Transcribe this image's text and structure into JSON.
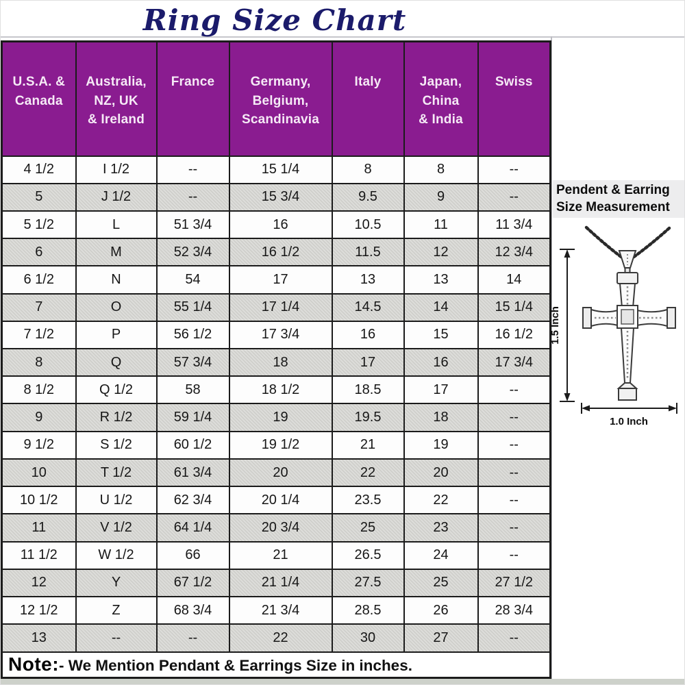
{
  "title": "Ring Size Chart",
  "chart_data": {
    "type": "table",
    "title": "Ring Size Chart",
    "columns": [
      "U.S.A. &\nCanada",
      "Australia,\nNZ, UK\n& Ireland",
      "France",
      "Germany,\nBelgium,\nScandinavia",
      "Italy",
      "Japan,\nChina\n& India",
      "Swiss"
    ],
    "rows": [
      [
        "4 1/2",
        "I 1/2",
        "--",
        "15 1/4",
        "8",
        "8",
        "--"
      ],
      [
        "5",
        "J 1/2",
        "--",
        "15 3/4",
        "9.5",
        "9",
        "--"
      ],
      [
        "5 1/2",
        "L",
        "51 3/4",
        "16",
        "10.5",
        "11",
        "11 3/4"
      ],
      [
        "6",
        "M",
        "52 3/4",
        "16 1/2",
        "11.5",
        "12",
        "12 3/4"
      ],
      [
        "6 1/2",
        "N",
        "54",
        "17",
        "13",
        "13",
        "14"
      ],
      [
        "7",
        "O",
        "55 1/4",
        "17 1/4",
        "14.5",
        "14",
        "15 1/4"
      ],
      [
        "7 1/2",
        "P",
        "56 1/2",
        "17 3/4",
        "16",
        "15",
        "16 1/2"
      ],
      [
        "8",
        "Q",
        "57 3/4",
        "18",
        "17",
        "16",
        "17 3/4"
      ],
      [
        "8 1/2",
        "Q 1/2",
        "58",
        "18 1/2",
        "18.5",
        "17",
        "--"
      ],
      [
        "9",
        "R 1/2",
        "59 1/4",
        "19",
        "19.5",
        "18",
        "--"
      ],
      [
        "9 1/2",
        "S 1/2",
        "60 1/2",
        "19 1/2",
        "21",
        "19",
        "--"
      ],
      [
        "10",
        "T 1/2",
        "61 3/4",
        "20",
        "22",
        "20",
        "--"
      ],
      [
        "10 1/2",
        "U 1/2",
        "62 3/4",
        "20 1/4",
        "23.5",
        "22",
        "--"
      ],
      [
        "11",
        "V 1/2",
        "64 1/4",
        "20 3/4",
        "25",
        "23",
        "--"
      ],
      [
        "11 1/2",
        "W 1/2",
        "66",
        "21",
        "26.5",
        "24",
        "--"
      ],
      [
        "12",
        "Y",
        "67 1/2",
        "21 1/4",
        "27.5",
        "25",
        "27 1/2"
      ],
      [
        "12 1/2",
        "Z",
        "68 3/4",
        "21 3/4",
        "28.5",
        "26",
        "28 3/4"
      ],
      [
        "13",
        "--",
        "--",
        "22",
        "30",
        "27",
        "--"
      ]
    ],
    "note": {
      "label": "Note:",
      "text": "- We Mention Pendant & Earrings Size in inches."
    }
  },
  "side_panel": {
    "heading_line1": "Pendent & Earring",
    "heading_line2": "Size Measurement",
    "pendant_height_label": "1.5 Inch",
    "pendant_width_label": "1.0 Inch",
    "pendant_icon": "cross-pendant-with-chain"
  },
  "colors": {
    "header_bg": "#8a1c90",
    "header_text": "#f6eaf6",
    "alt_row_bg": "#d3d3cf",
    "title_text": "#1b1b6b",
    "table_border": "#1b1b1b"
  }
}
